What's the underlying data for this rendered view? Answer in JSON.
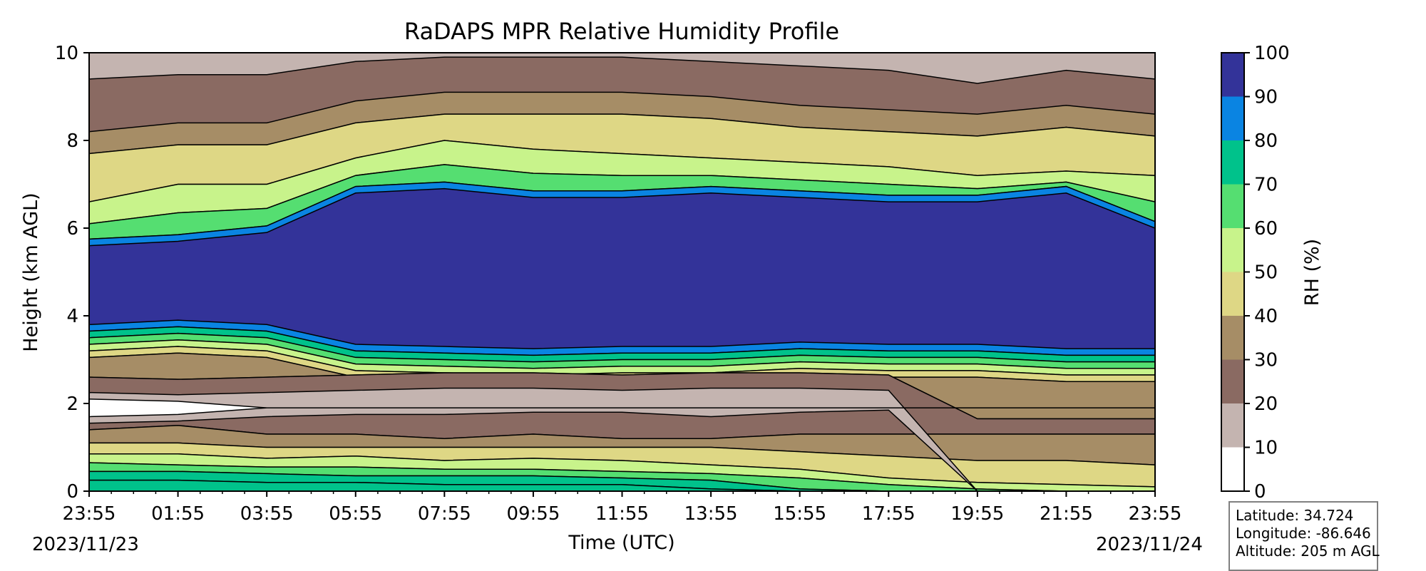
{
  "chart_data": {
    "type": "heatmap",
    "subtype": "filled-contour",
    "title": "RaDAPS MPR Relative Humidity Profile",
    "xlabel": "Time (UTC)",
    "ylabel": "Height (km AGL)",
    "x_ticks": [
      "23:55",
      "01:55",
      "03:55",
      "05:55",
      "07:55",
      "09:55",
      "11:55",
      "13:55",
      "15:55",
      "17:55",
      "19:55",
      "21:55",
      "23:55"
    ],
    "x_start_date": "2023/11/23",
    "x_end_date": "2023/11/24",
    "ylim": [
      0,
      10
    ],
    "y_ticks": [
      0,
      2,
      4,
      6,
      8,
      10
    ],
    "colorbar": {
      "label": "RH (%)",
      "levels": [
        0,
        10,
        20,
        30,
        40,
        50,
        60,
        70,
        80,
        90,
        100
      ],
      "colors": [
        "#ffffff",
        "#c4b4b0",
        "#8a6a62",
        "#a68d66",
        "#ded785",
        "#c8f38b",
        "#55de71",
        "#00c28b",
        "#0a84e2",
        "#333399"
      ]
    },
    "profile_layers_km": {
      "times": [
        "23:55",
        "01:55",
        "03:55",
        "05:55",
        "07:55",
        "09:55",
        "11:55",
        "13:55",
        "15:55",
        "17:55",
        "19:55",
        "21:55",
        "23:55"
      ],
      "rh_band_bottom_km": [
        [
          0,
          0,
          0,
          0,
          0,
          0,
          0,
          0,
          0,
          0,
          0,
          0,
          0
        ],
        [
          1.4,
          1.5,
          1.3,
          1.3,
          1.2,
          1.3,
          1.2,
          1.2,
          1.3,
          1.3,
          1.3,
          1.3,
          1.3
        ],
        [
          1.1,
          1.1,
          1.0,
          1.0,
          1.0,
          1.0,
          1.0,
          1.0,
          0.9,
          0.8,
          0.7,
          0.7,
          0.6
        ],
        [
          0.85,
          0.85,
          0.75,
          0.8,
          0.7,
          0.75,
          0.7,
          0.6,
          0.5,
          0.3,
          0.2,
          0.15,
          0.1
        ],
        [
          0.65,
          0.6,
          0.55,
          0.55,
          0.5,
          0.5,
          0.45,
          0.4,
          0.3,
          0.15,
          0.05,
          0.0,
          0.0
        ],
        [
          0.45,
          0.45,
          0.4,
          0.35,
          0.35,
          0.35,
          0.3,
          0.25,
          0.05,
          0.0,
          0.0,
          0.0,
          0.0
        ],
        [
          0.25,
          0.25,
          0.2,
          0.2,
          0.15,
          0.15,
          0.15,
          0.05,
          0.0,
          0.0,
          0.0,
          0.0,
          0.0
        ]
      ],
      "dry_core_km": [
        [
          1.55,
          2.25
        ],
        [
          1.6,
          2.2
        ],
        [
          1.7,
          2.25
        ],
        [
          1.75,
          2.3
        ],
        [
          1.75,
          2.35
        ],
        [
          1.8,
          2.35
        ],
        [
          1.8,
          2.3
        ],
        [
          1.7,
          2.35
        ],
        [
          1.8,
          2.35
        ],
        [
          1.85,
          2.3
        ],
        [
          0,
          0
        ],
        [
          0,
          0
        ],
        [
          0,
          0
        ]
      ],
      "moist_core_bottom_km": [
        3.8,
        3.9,
        3.8,
        3.35,
        3.3,
        3.25,
        3.3,
        3.3,
        3.4,
        3.35,
        3.35,
        3.25,
        3.25
      ],
      "moist_core_top_km": [
        5.6,
        5.7,
        5.9,
        6.8,
        6.9,
        6.7,
        6.7,
        6.8,
        6.7,
        6.6,
        6.6,
        6.8,
        6.0
      ],
      "upper_layers_km": [
        6.6,
        7.0,
        7.0,
        7.6,
        8.0,
        7.8,
        7.7,
        7.6,
        7.5,
        7.4,
        7.2,
        7.3,
        7.2
      ],
      "dry_upper_bottom_km": [
        7.7,
        7.9,
        7.9,
        8.4,
        8.6,
        8.6,
        8.6,
        8.5,
        8.3,
        8.2,
        8.1,
        8.3,
        8.1
      ],
      "top_layer_km": [
        9.4,
        9.5,
        9.5,
        9.8,
        9.9,
        9.9,
        9.9,
        9.8,
        9.7,
        9.6,
        9.3,
        9.6,
        9.4
      ]
    },
    "grid": false,
    "legend": "colorbar-right"
  },
  "info": {
    "latitude": "Latitude: 34.724",
    "longitude": "Longitude: -86.646",
    "altitude": "Altitude: 205 m AGL"
  }
}
